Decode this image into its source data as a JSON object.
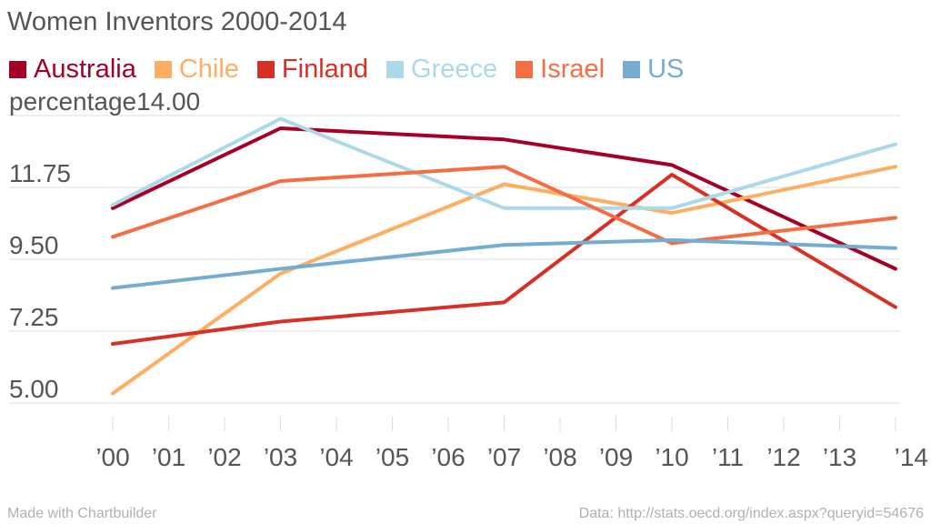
{
  "chart_data": {
    "type": "line",
    "title": "Women Inventors 2000-2014",
    "ylabel": "percentage",
    "xlabel": "",
    "ylim": [
      5.0,
      14.0
    ],
    "y_ticks": [
      "14.00",
      "11.75",
      "9.50",
      "7.25",
      "5.00"
    ],
    "y_tick_values": [
      14.0,
      11.75,
      9.5,
      7.25,
      5.0
    ],
    "x_tick_labels": [
      "’00",
      "’01",
      "’02",
      "’03",
      "’04",
      "’05",
      "’06",
      "’07",
      "’08",
      "’09",
      "’10",
      "’11",
      "’12",
      "’13",
      "’14"
    ],
    "x": [
      2000,
      2003,
      2007,
      2010,
      2014
    ],
    "legend_position": "top-left",
    "grid": true,
    "series": [
      {
        "name": "Australia",
        "color": "#a50026",
        "values": [
          11.1,
          13.6,
          13.25,
          12.45,
          9.2
        ]
      },
      {
        "name": "Chile",
        "color": "#fdae61",
        "values": [
          5.3,
          9.05,
          11.85,
          10.95,
          12.4
        ]
      },
      {
        "name": "Finland",
        "color": "#d73027",
        "values": [
          6.85,
          7.55,
          8.15,
          12.15,
          8.0
        ]
      },
      {
        "name": "Greece",
        "color": "#abd9e9",
        "values": [
          11.2,
          13.9,
          11.1,
          11.1,
          13.1
        ]
      },
      {
        "name": "Israel",
        "color": "#f46d43",
        "values": [
          10.2,
          11.95,
          12.4,
          10.0,
          10.8
        ]
      },
      {
        "name": "US",
        "color": "#74add1",
        "values": [
          8.6,
          9.2,
          9.95,
          10.1,
          9.85
        ]
      }
    ]
  },
  "footer": {
    "left": "Made with Chartbuilder",
    "right": "Data: http://stats.oecd.org/index.aspx?queryid=54676"
  }
}
